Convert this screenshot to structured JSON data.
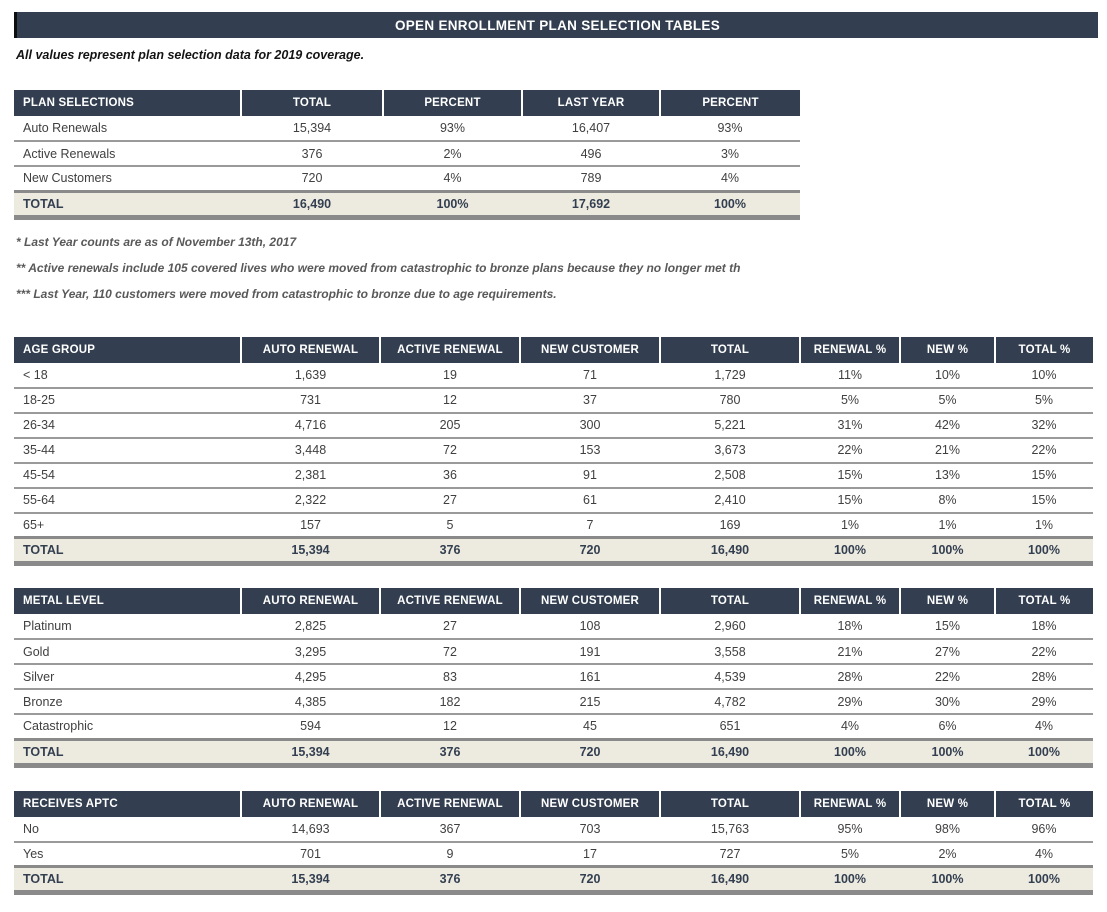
{
  "title": "OPEN ENROLLMENT PLAN SELECTION TABLES",
  "subtitle": "All values represent plan selection data for 2019 coverage.",
  "footnotes": [
    "* Last Year counts are as of November 13th, 2017",
    "** Active renewals include 105 covered lives who were moved from catastrophic to bronze plans because they no longer met th",
    "*** Last Year, 110 customers were moved from catastrophic to bronze due to age requirements."
  ],
  "colors": {
    "header_bg": "#333F50",
    "total_row_bg": "#EDEBE0",
    "border_gray": "#8A8A8A",
    "row_line": "#9A9A9A",
    "text_dark": "#404040",
    "footnote_gray": "#595959"
  },
  "tables": [
    {
      "id": "plan-selections",
      "columns": [
        "PLAN SELECTIONS",
        "TOTAL",
        "PERCENT",
        "LAST YEAR",
        "PERCENT"
      ],
      "rows": [
        [
          "Auto Renewals",
          "15,394",
          "93%",
          "16,407",
          "93%"
        ],
        [
          "Active Renewals",
          "376",
          "2%",
          "496",
          "3%"
        ],
        [
          "New Customers",
          "720",
          "4%",
          "789",
          "4%"
        ]
      ],
      "total_row": [
        "TOTAL",
        "16,490",
        "100%",
        "17,692",
        "100%"
      ]
    },
    {
      "id": "age-group",
      "columns": [
        "AGE GROUP",
        "AUTO RENEWAL",
        "ACTIVE RENEWAL",
        "NEW CUSTOMER",
        "TOTAL",
        "RENEWAL %",
        "NEW %",
        "TOTAL %"
      ],
      "rows": [
        [
          "< 18",
          "1,639",
          "19",
          "71",
          "1,729",
          "11%",
          "10%",
          "10%"
        ],
        [
          "18-25",
          "731",
          "12",
          "37",
          "780",
          "5%",
          "5%",
          "5%"
        ],
        [
          "26-34",
          "4,716",
          "205",
          "300",
          "5,221",
          "31%",
          "42%",
          "32%"
        ],
        [
          "35-44",
          "3,448",
          "72",
          "153",
          "3,673",
          "22%",
          "21%",
          "22%"
        ],
        [
          "45-54",
          "2,381",
          "36",
          "91",
          "2,508",
          "15%",
          "13%",
          "15%"
        ],
        [
          "55-64",
          "2,322",
          "27",
          "61",
          "2,410",
          "15%",
          "8%",
          "15%"
        ],
        [
          "65+",
          "157",
          "5",
          "7",
          "169",
          "1%",
          "1%",
          "1%"
        ]
      ],
      "total_row": [
        "TOTAL",
        "15,394",
        "376",
        "720",
        "16,490",
        "100%",
        "100%",
        "100%"
      ]
    },
    {
      "id": "metal-level",
      "columns": [
        "METAL LEVEL",
        "AUTO RENEWAL",
        "ACTIVE RENEWAL",
        "NEW CUSTOMER",
        "TOTAL",
        "RENEWAL %",
        "NEW %",
        "TOTAL %"
      ],
      "rows": [
        [
          "Platinum",
          "2,825",
          "27",
          "108",
          "2,960",
          "18%",
          "15%",
          "18%"
        ],
        [
          "Gold",
          "3,295",
          "72",
          "191",
          "3,558",
          "21%",
          "27%",
          "22%"
        ],
        [
          "Silver",
          "4,295",
          "83",
          "161",
          "4,539",
          "28%",
          "22%",
          "28%"
        ],
        [
          "Bronze",
          "4,385",
          "182",
          "215",
          "4,782",
          "29%",
          "30%",
          "29%"
        ],
        [
          "Catastrophic",
          "594",
          "12",
          "45",
          "651",
          "4%",
          "6%",
          "4%"
        ]
      ],
      "total_row": [
        "TOTAL",
        "15,394",
        "376",
        "720",
        "16,490",
        "100%",
        "100%",
        "100%"
      ]
    },
    {
      "id": "receives-aptc",
      "columns": [
        "RECEIVES APTC",
        "AUTO RENEWAL",
        "ACTIVE RENEWAL",
        "NEW CUSTOMER",
        "TOTAL",
        "RENEWAL %",
        "NEW %",
        "TOTAL %"
      ],
      "rows": [
        [
          "No",
          "14,693",
          "367",
          "703",
          "15,763",
          "95%",
          "98%",
          "96%"
        ],
        [
          "Yes",
          "701",
          "9",
          "17",
          "727",
          "5%",
          "2%",
          "4%"
        ]
      ],
      "total_row": [
        "TOTAL",
        "15,394",
        "376",
        "720",
        "16,490",
        "100%",
        "100%",
        "100%"
      ]
    }
  ]
}
